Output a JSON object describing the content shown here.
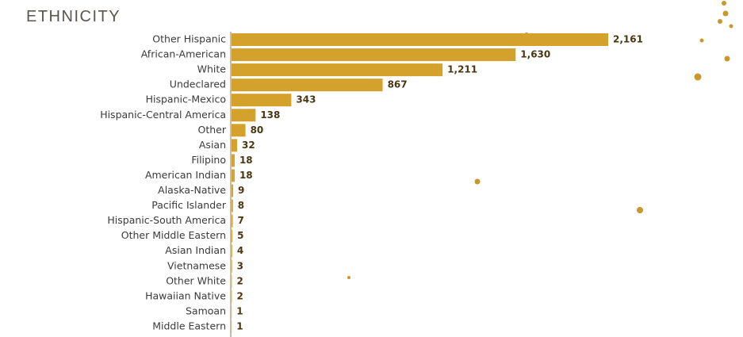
{
  "chart_data": {
    "type": "bar",
    "orientation": "horizontal",
    "title": "ETHNICITY",
    "categories": [
      "Other Hispanic",
      "African-American",
      "White",
      "Undeclared",
      "Hispanic-Mexico",
      "Hispanic-Central America",
      "Other",
      "Asian",
      "Filipino",
      "American Indian",
      "Alaska-Native",
      "Pacific Islander",
      "Hispanic-South America",
      "Other Middle Eastern",
      "Asian Indian",
      "Vietnamese",
      "Other White",
      "Hawaiian Native",
      "Samoan",
      "Middle Eastern"
    ],
    "values": [
      2161,
      1630,
      1211,
      867,
      343,
      138,
      80,
      32,
      18,
      18,
      9,
      8,
      7,
      5,
      4,
      3,
      2,
      2,
      1,
      1
    ],
    "value_labels": [
      "2,161",
      "1,630",
      "1,211",
      "867",
      "343",
      "138",
      "80",
      "32",
      "18",
      "18",
      "9",
      "8",
      "7",
      "5",
      "4",
      "3",
      "2",
      "2",
      "1",
      "1"
    ],
    "color": "#d4a22b"
  }
}
